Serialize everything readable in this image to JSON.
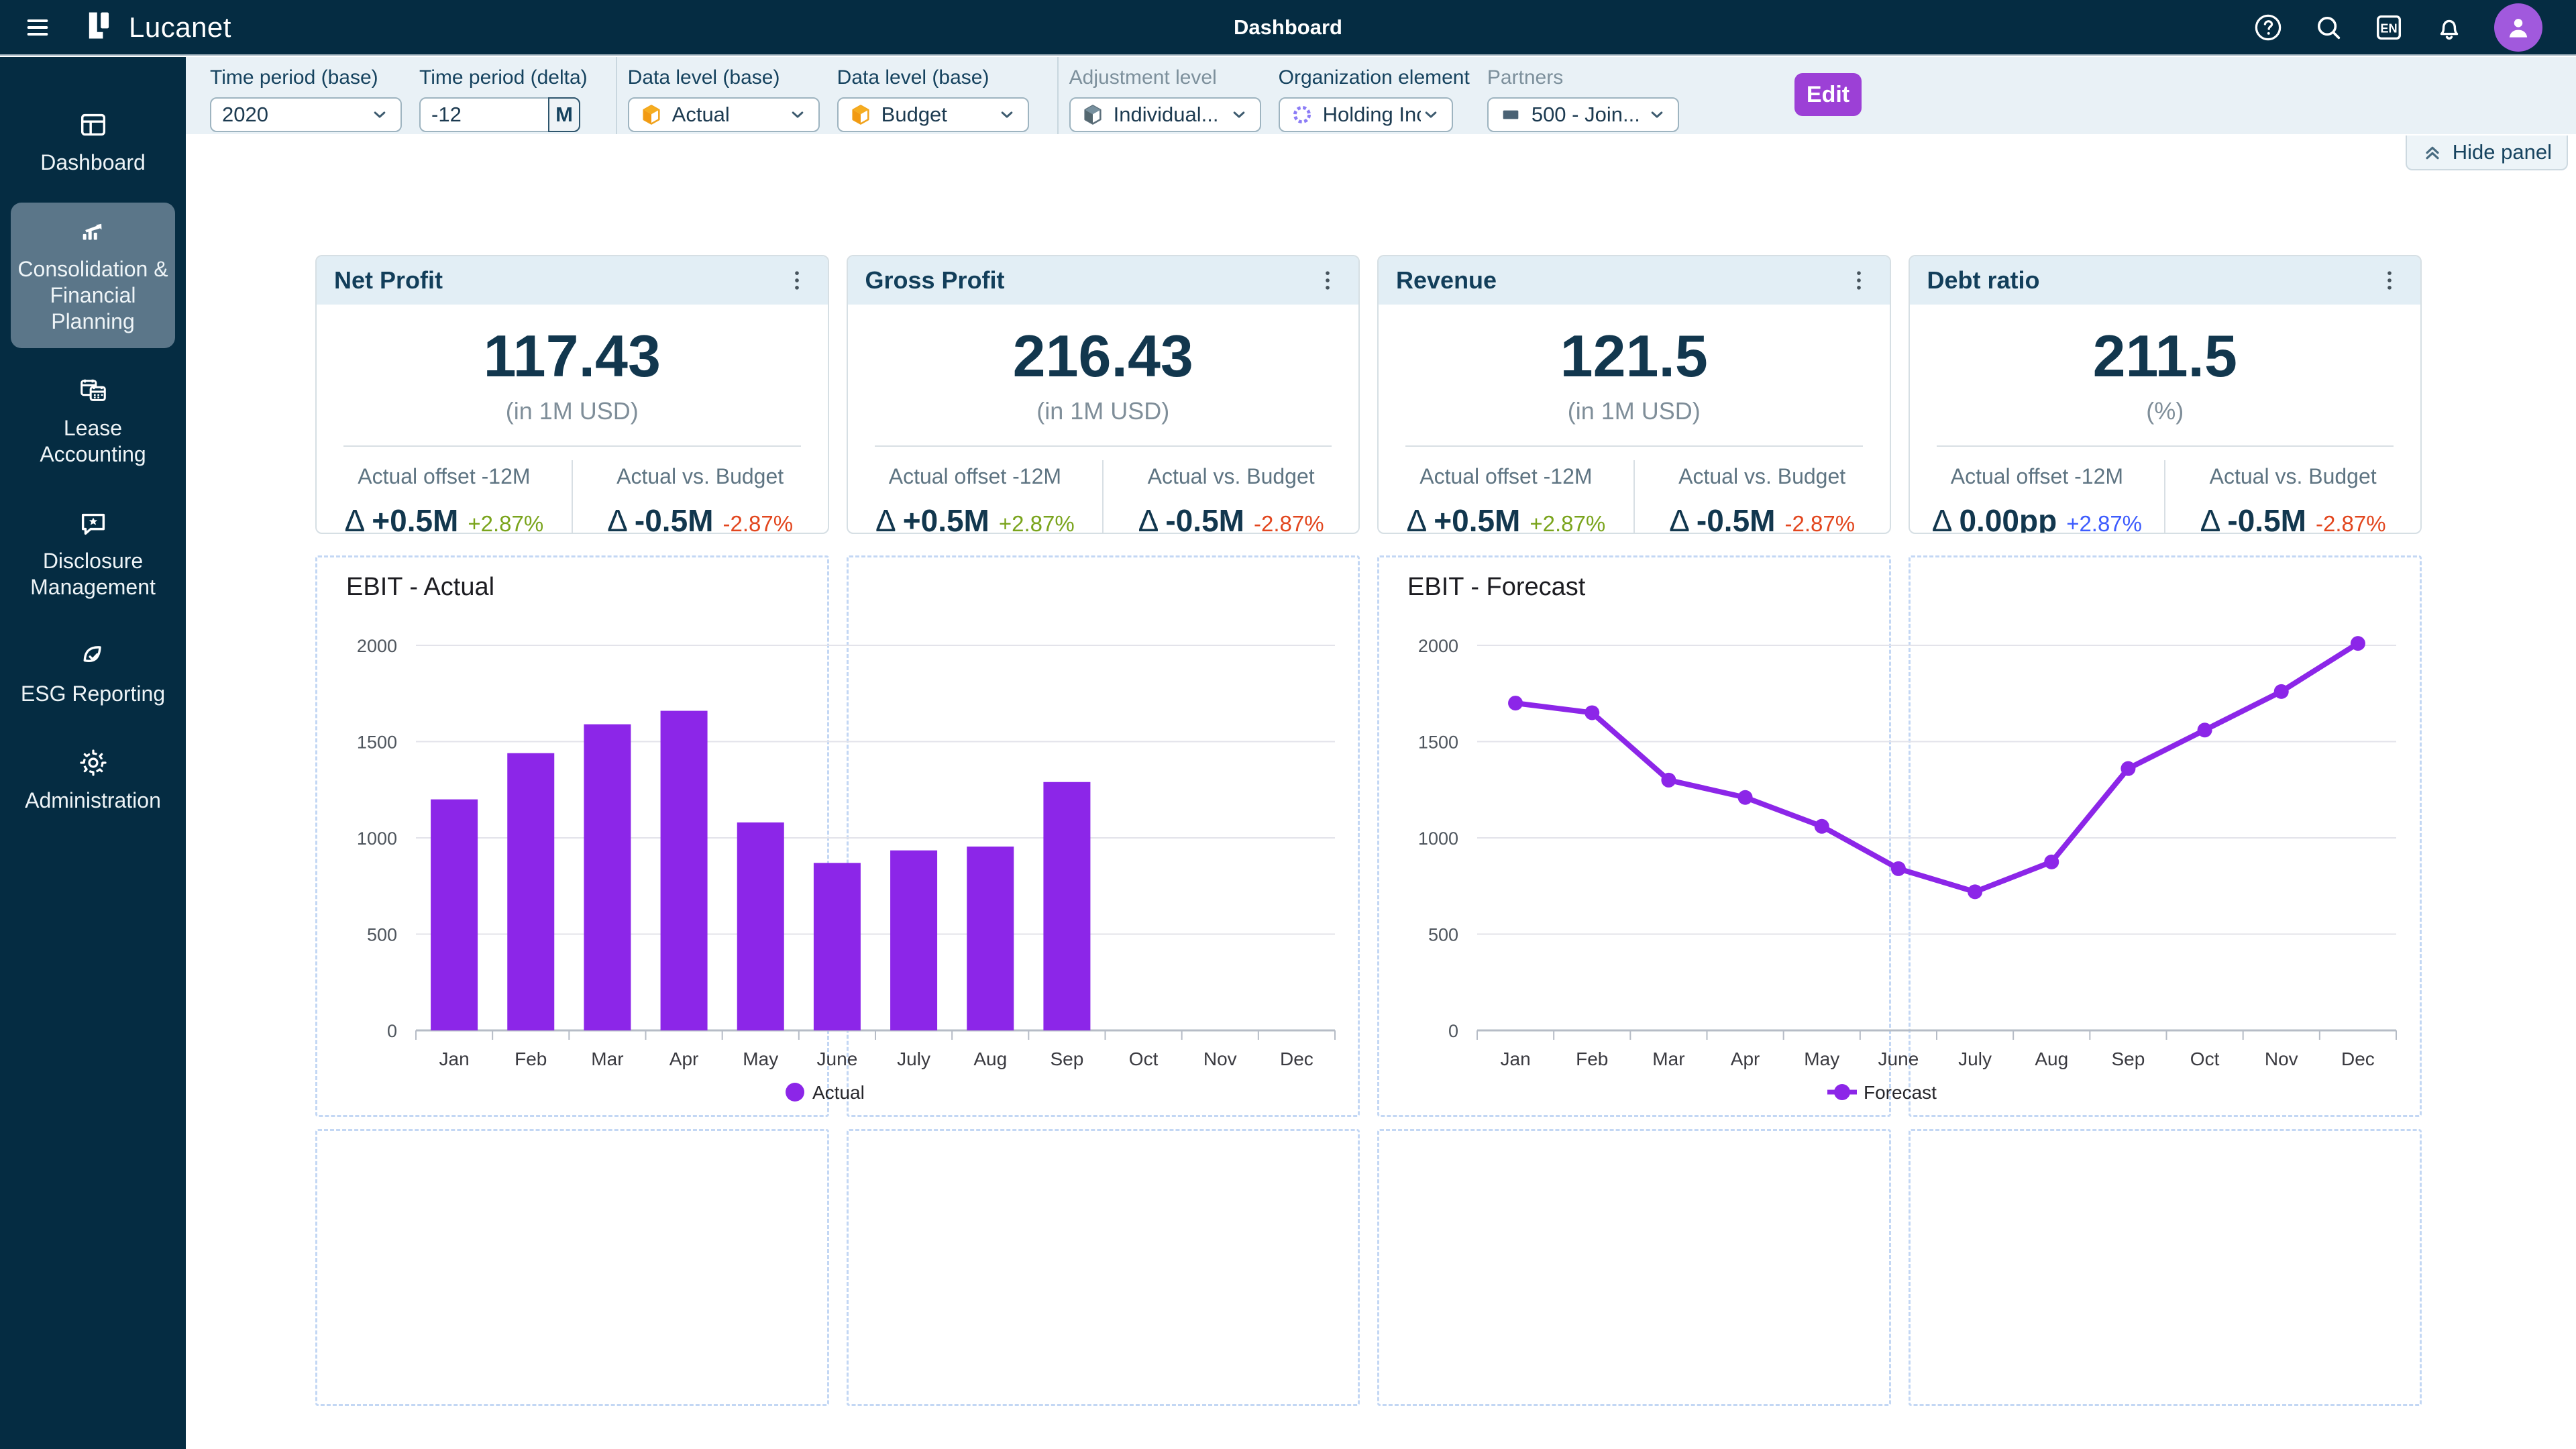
{
  "app_bar": {
    "brand": "Lucanet",
    "title": "Dashboard",
    "language": "EN"
  },
  "sidebar": {
    "items": [
      {
        "label": "Dashboard",
        "icon": "dashboard",
        "active": false
      },
      {
        "label": "Consolidation & Financial Planning",
        "icon": "consolidation",
        "active": true
      },
      {
        "label": "Lease Accounting",
        "icon": "lease",
        "active": false
      },
      {
        "label": "Disclosure Management",
        "icon": "disclosure",
        "active": false
      },
      {
        "label": "ESG Reporting",
        "icon": "esg",
        "active": false
      },
      {
        "label": "Administration",
        "icon": "admin",
        "active": false
      }
    ]
  },
  "filter_panel": {
    "fields": [
      {
        "label": "Time period (base)",
        "value": "2020",
        "control": "select",
        "muted": false,
        "divider_before": false
      },
      {
        "label": "Time period (delta)",
        "value": "-12",
        "control": "input",
        "suffix": "M",
        "muted": false,
        "divider_before": false
      },
      {
        "label": "Data level (base)",
        "value": "Actual",
        "control": "select",
        "icon": "cube-orange",
        "muted": false,
        "divider_before": true
      },
      {
        "label": "Data level (base)",
        "value": "Budget",
        "control": "select",
        "icon": "cube-orange",
        "muted": false,
        "divider_before": false
      },
      {
        "label": "Adjustment level",
        "value": "Individual...",
        "control": "select",
        "icon": "cube-gray",
        "muted": true,
        "divider_before": true
      },
      {
        "label": "Organization element",
        "value": "Holding Inc.",
        "control": "select",
        "icon": "ring-purple",
        "muted": false,
        "divider_before": false
      },
      {
        "label": "Partners",
        "value": "500 - Join...",
        "control": "select",
        "icon": "rect-slate",
        "muted": true,
        "divider_before": false
      }
    ],
    "edit_label": "Edit",
    "hide_panel_label": "Hide panel"
  },
  "kpi_meta": {
    "delta_symbol": "Δ"
  },
  "kpi_cards": [
    {
      "title": "Net Profit",
      "value": "117.43",
      "unit": "(in 1M USD)",
      "sections": [
        {
          "label": "Actual offset -12M",
          "delta": "+0.5M",
          "pct": "+2.87%",
          "pct_color": "#7aa41c"
        },
        {
          "label": "Actual vs. Budget",
          "delta": "-0.5M",
          "pct": "-2.87%",
          "pct_color": "#e2461e"
        }
      ]
    },
    {
      "title": "Gross Profit",
      "value": "216.43",
      "unit": "(in 1M USD)",
      "sections": [
        {
          "label": "Actual offset -12M",
          "delta": "+0.5M",
          "pct": "+2.87%",
          "pct_color": "#7aa41c"
        },
        {
          "label": "Actual vs. Budget",
          "delta": "-0.5M",
          "pct": "-2.87%",
          "pct_color": "#e2461e"
        }
      ]
    },
    {
      "title": "Revenue",
      "value": "121.5",
      "unit": "(in 1M USD)",
      "sections": [
        {
          "label": "Actual offset -12M",
          "delta": "+0.5M",
          "pct": "+2.87%",
          "pct_color": "#7aa41c"
        },
        {
          "label": "Actual vs. Budget",
          "delta": "-0.5M",
          "pct": "-2.87%",
          "pct_color": "#e2461e"
        }
      ]
    },
    {
      "title": "Debt ratio",
      "value": "211.5",
      "unit": "(%)",
      "sections": [
        {
          "label": "Actual offset -12M",
          "delta": "0.00pp",
          "pct": "+2.87%",
          "pct_color": "#3d5cfe"
        },
        {
          "label": "Actual vs. Budget",
          "delta": "-0.5M",
          "pct": "-2.87%",
          "pct_color": "#e2461e"
        }
      ]
    }
  ],
  "chart_data": [
    {
      "type": "bar",
      "title": "EBIT - Actual",
      "categories": [
        "Jan",
        "Feb",
        "Mar",
        "Apr",
        "May",
        "June",
        "July",
        "Aug",
        "Sep",
        "Oct",
        "Nov",
        "Dec"
      ],
      "values": [
        1200,
        1440,
        1590,
        1660,
        1080,
        870,
        935,
        955,
        1290,
        0,
        0,
        0
      ],
      "xlabel": "",
      "ylabel": "",
      "ylim": [
        0,
        2000
      ],
      "yticks": [
        0,
        500,
        1000,
        1500,
        2000
      ],
      "grid": true,
      "series_color": "#8c26e8",
      "legend": "Actual",
      "legend_position": "bottom"
    },
    {
      "type": "line",
      "title": "EBIT - Forecast",
      "categories": [
        "Jan",
        "Feb",
        "Mar",
        "Apr",
        "May",
        "June",
        "July",
        "Aug",
        "Sep",
        "Oct",
        "Nov",
        "Dec"
      ],
      "values": [
        1700,
        1650,
        1300,
        1210,
        1060,
        840,
        720,
        875,
        1360,
        1560,
        1760,
        2010
      ],
      "xlabel": "",
      "ylabel": "",
      "ylim": [
        0,
        2000
      ],
      "yticks": [
        0,
        500,
        1000,
        1500,
        2000
      ],
      "grid": true,
      "series_color": "#8c26e8",
      "legend": "Forecast",
      "legend_position": "bottom"
    }
  ]
}
